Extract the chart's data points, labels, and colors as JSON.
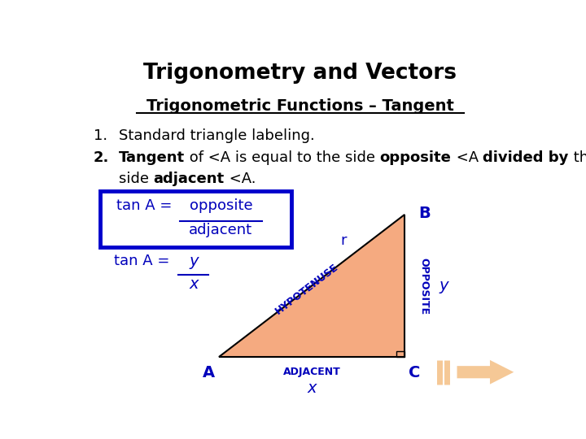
{
  "title": "Trigonometry and Vectors",
  "subtitle": "Trigonometric Functions – Tangent",
  "item1": "Standard triangle labeling.",
  "bg_color": "#ffffff",
  "title_color": "#000000",
  "subtitle_color": "#000000",
  "text_color": "#000000",
  "blue_color": "#0000bb",
  "box_edge_color": "#0000cc",
  "triangle_fill": "#f5aa80",
  "triangle_edge": "#000000",
  "vertex_A": "A",
  "vertex_B": "B",
  "vertex_C": "C",
  "label_hyp": "HYPOTENUSE",
  "label_adj": "ADJACENT",
  "label_opp": "OPPOSITE",
  "label_r": "r",
  "label_x": "x",
  "label_y": "y",
  "arrow_color": "#f5c896",
  "tan_label": "tan A = ",
  "opposite_label": "opposite",
  "adjacent_label": "adjacent",
  "frac_y_label": "y",
  "frac_x_label": "x"
}
